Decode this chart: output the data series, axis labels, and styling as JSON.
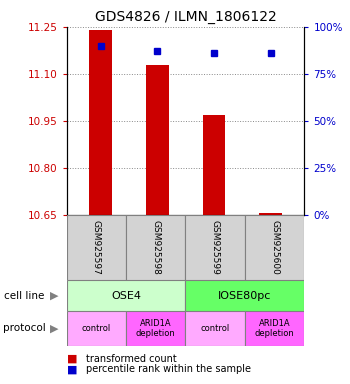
{
  "title": "GDS4826 / ILMN_1806122",
  "samples": [
    "GSM925597",
    "GSM925598",
    "GSM925599",
    "GSM925600"
  ],
  "bar_values": [
    11.24,
    11.13,
    10.97,
    10.655
  ],
  "bar_base": 10.65,
  "percentile_values": [
    90,
    87,
    86,
    86
  ],
  "ylim_left": [
    10.65,
    11.25
  ],
  "ylim_right": [
    0,
    100
  ],
  "left_ticks": [
    10.65,
    10.8,
    10.95,
    11.1,
    11.25
  ],
  "right_ticks": [
    0,
    25,
    50,
    75,
    100
  ],
  "right_tick_labels": [
    "0%",
    "25%",
    "50%",
    "75%",
    "100%"
  ],
  "bar_color": "#cc0000",
  "dot_color": "#0000cc",
  "left_tick_color": "#cc0000",
  "right_tick_color": "#0000cc",
  "cell_line_labels": [
    "OSE4",
    "IOSE80pc"
  ],
  "cell_line_spans": [
    [
      0,
      2
    ],
    [
      2,
      4
    ]
  ],
  "cell_line_colors": [
    "#ccffcc",
    "#66ff66"
  ],
  "protocol_labels": [
    "control",
    "ARID1A\ndepletion",
    "control",
    "ARID1A\ndepletion"
  ],
  "protocol_colors": [
    "#ffaaff",
    "#ff66ff",
    "#ffaaff",
    "#ff66ff"
  ],
  "legend_bar_label": "transformed count",
  "legend_dot_label": "percentile rank within the sample",
  "background_color": "#ffffff",
  "grid_color": "#888888"
}
